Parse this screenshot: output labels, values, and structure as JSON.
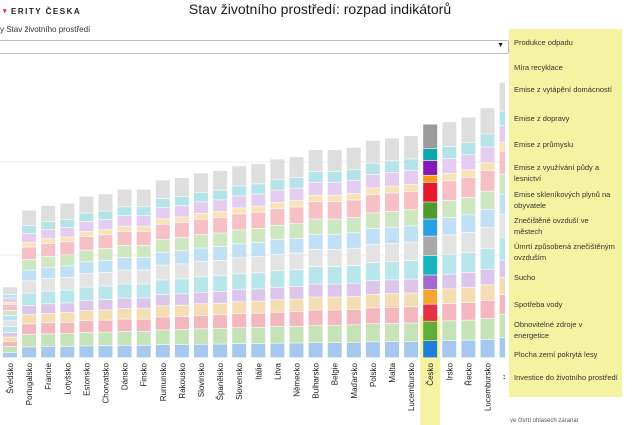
{
  "brand": {
    "text": "ERITY ČESKA"
  },
  "page": {
    "title": "Stav životního prostředí: rozpad indikátorů"
  },
  "selector": {
    "label": "y Stav životního prostředí",
    "value": ""
  },
  "legend": {
    "items": [
      "Produkce odpadu",
      "Míra recyklace",
      "Emise z vytápění domácností",
      "Emise z dopravy",
      "Emise z průmyslu",
      "Emise z využívání půdy a lesnictví",
      "Emise skleníkových plynů na obyvatele",
      "Znečištěné ovzduší ve městech",
      "Úmrtí způsobená znečištěným ovzduším",
      "Sucho",
      "Spotřeba vody",
      "Obnovitelné zdroje v energetice",
      "Plocha zemí pokrytá lesy",
      "Investice do životního prostředí"
    ]
  },
  "footer": {
    "note": "ve čtvrtí ohlasech zaranar"
  },
  "chart_data": {
    "type": "bar",
    "stacked": true,
    "title": "Stav životního prostředí: rozpad indikátorů",
    "categories": [
      "Švédsko",
      "Portugalsko",
      "Francie",
      "Lotyšsko",
      "Estonsko",
      "Chorvatsko",
      "Dánsko",
      "Finsko",
      "Rumunsko",
      "Rakousko",
      "Slovinsko",
      "Španělsko",
      "Slovensko",
      "Itálie",
      "Litva",
      "Německo",
      "Bulharsko",
      "Belgie",
      "Maďarsko",
      "Polsko",
      "Malta",
      "Lucembursko",
      "Česko",
      "Irsko",
      "Řecko",
      "Lucembursko",
      "Kypr"
    ],
    "highlight": "Česko",
    "highlight_color": "#f4f3a1",
    "totals": [
      27,
      60,
      62,
      63,
      66,
      67,
      69,
      69,
      73,
      74,
      76,
      77,
      79,
      80,
      82,
      83,
      86,
      86,
      87,
      90,
      91,
      92,
      97,
      98,
      100,
      104,
      115
    ],
    "ylim": [
      0,
      120
    ],
    "grid": true,
    "series": [
      {
        "name": "Produkce odpadu",
        "color": "#a6c8ee",
        "highlight_color": "#1e7fd8",
        "weight": 7
      },
      {
        "name": "Míra recyklace",
        "color": "#c6e3b8",
        "highlight_color": "#5fae3b",
        "weight": 8
      },
      {
        "name": "Emise z vytápění domácností",
        "color": "#f3b7c0",
        "highlight_color": "#e63244",
        "weight": 7
      },
      {
        "name": "Emise z dopravy",
        "color": "#f5ddb3",
        "highlight_color": "#f2a531",
        "weight": 6
      },
      {
        "name": "Emise z průmyslu",
        "color": "#dcc6ec",
        "highlight_color": "#a36bd1",
        "weight": 6
      },
      {
        "name": "Emise z využívání půdy a lesnictví",
        "color": "#b9e6ea",
        "highlight_color": "#16b5bd",
        "weight": 8
      },
      {
        "name": "Emise skleníkových plynů na obyvatele",
        "color": "#e3e3e3",
        "highlight_color": "#a9a9a9",
        "weight": 8
      },
      {
        "name": "Znečištěné ovzduší ve městech",
        "color": "#bfe0f5",
        "highlight_color": "#2b9fe6",
        "weight": 7
      },
      {
        "name": "Úmrtí způsobená znečištěným ovzduším",
        "color": "#cfe7c1",
        "highlight_color": "#4f9a2c",
        "weight": 7
      },
      {
        "name": "Sucho",
        "color": "#f7c0c7",
        "highlight_color": "#e7182c",
        "weight": 8
      },
      {
        "name": "Spotřeba vody",
        "color": "#f8e2b8",
        "highlight_color": "#f79a1b",
        "weight": 3
      },
      {
        "name": "Obnovitelné zdroje v energetice",
        "color": "#e4cdf0",
        "highlight_color": "#8a17b5",
        "weight": 6
      },
      {
        "name": "Plocha zemí pokrytá lesy",
        "color": "#b5e4e8",
        "highlight_color": "#0ea7ae",
        "weight": 5
      },
      {
        "name": "Investice do životního prostředí",
        "color": "#dedede",
        "highlight_color": "#9b9b9b",
        "weight": 10
      }
    ]
  }
}
